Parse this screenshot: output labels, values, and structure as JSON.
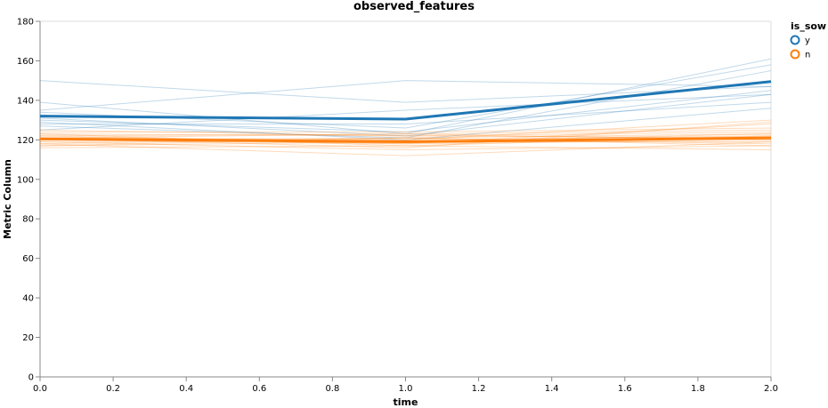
{
  "chart_data": {
    "type": "line",
    "title": "observed_features",
    "xlabel": "time",
    "ylabel": "Metric Column",
    "xlim": [
      0,
      2
    ],
    "ylim": [
      0,
      180
    ],
    "x_ticks": [
      "0.0",
      "0.2",
      "0.4",
      "0.6",
      "0.8",
      "1.0",
      "1.2",
      "1.4",
      "1.6",
      "1.8",
      "2.0"
    ],
    "y_ticks": [
      "0",
      "20",
      "40",
      "60",
      "80",
      "100",
      "120",
      "140",
      "160",
      "180"
    ],
    "grid": false,
    "legend": {
      "title": "is_sow",
      "placement": "top-right",
      "entries": [
        {
          "label": "y",
          "color": "#1f77b4"
        },
        {
          "label": "n",
          "color": "#ff7f0e"
        }
      ]
    },
    "x": [
      0,
      1,
      2
    ],
    "series": [
      {
        "name": "y",
        "role": "mean",
        "color": "#1f77b4",
        "values": [
          132,
          130.5,
          149.5
        ]
      },
      {
        "name": "n",
        "role": "mean",
        "color": "#ff7f0e",
        "values": [
          120.5,
          119,
          121
        ]
      },
      {
        "name": "y",
        "role": "individual",
        "color": "#1f77b4",
        "values": [
          150,
          139,
          147
        ]
      },
      {
        "name": "y",
        "role": "individual",
        "color": "#1f77b4",
        "values": [
          139,
          123,
          161
        ]
      },
      {
        "name": "y",
        "role": "individual",
        "color": "#1f77b4",
        "values": [
          135,
          150,
          147
        ]
      },
      {
        "name": "y",
        "role": "individual",
        "color": "#1f77b4",
        "values": [
          134,
          126,
          158
        ]
      },
      {
        "name": "y",
        "role": "individual",
        "color": "#1f77b4",
        "values": [
          131,
          122,
          143
        ]
      },
      {
        "name": "y",
        "role": "individual",
        "color": "#1f77b4",
        "values": [
          130,
          124,
          145
        ]
      },
      {
        "name": "y",
        "role": "individual",
        "color": "#1f77b4",
        "values": [
          128,
          128,
          139
        ]
      },
      {
        "name": "y",
        "role": "individual",
        "color": "#1f77b4",
        "values": [
          127,
          121,
          155
        ]
      },
      {
        "name": "y",
        "role": "individual",
        "color": "#1f77b4",
        "values": [
          129,
          120,
          136
        ]
      },
      {
        "name": "y",
        "role": "individual",
        "color": "#1f77b4",
        "values": [
          125,
          135,
          143
        ]
      },
      {
        "name": "n",
        "role": "individual",
        "color": "#ff7f0e",
        "values": [
          123,
          117,
          122
        ]
      },
      {
        "name": "n",
        "role": "individual",
        "color": "#ff7f0e",
        "values": [
          121,
          120,
          130
        ]
      },
      {
        "name": "n",
        "role": "individual",
        "color": "#ff7f0e",
        "values": [
          120,
          118,
          128
        ]
      },
      {
        "name": "n",
        "role": "individual",
        "color": "#ff7f0e",
        "values": [
          117,
          121,
          123
        ]
      },
      {
        "name": "n",
        "role": "individual",
        "color": "#ff7f0e",
        "values": [
          122,
          123,
          125
        ]
      },
      {
        "name": "n",
        "role": "individual",
        "color": "#ff7f0e",
        "values": [
          119,
          115,
          117
        ]
      },
      {
        "name": "n",
        "role": "individual",
        "color": "#ff7f0e",
        "values": [
          118,
          112,
          119
        ]
      },
      {
        "name": "n",
        "role": "individual",
        "color": "#ff7f0e",
        "values": [
          124,
          124,
          126
        ]
      },
      {
        "name": "n",
        "role": "individual",
        "color": "#ff7f0e",
        "values": [
          121,
          119,
          121
        ]
      },
      {
        "name": "n",
        "role": "individual",
        "color": "#ff7f0e",
        "values": [
          116,
          117,
          115
        ]
      },
      {
        "name": "n",
        "role": "individual",
        "color": "#ff7f0e",
        "values": [
          120,
          121,
          118
        ]
      },
      {
        "name": "n",
        "role": "individual",
        "color": "#ff7f0e",
        "values": [
          123,
          122,
          124
        ]
      },
      {
        "name": "n",
        "role": "individual",
        "color": "#ff7f0e",
        "values": [
          122,
          118,
          120
        ]
      },
      {
        "name": "n",
        "role": "individual",
        "color": "#ff7f0e",
        "values": [
          119,
          120,
          122
        ]
      },
      {
        "name": "n",
        "role": "individual",
        "color": "#ff7f0e",
        "values": [
          121,
          116,
          129
        ]
      },
      {
        "name": "n",
        "role": "individual",
        "color": "#ff7f0e",
        "values": [
          118,
          121,
          117
        ]
      },
      {
        "name": "n",
        "role": "individual",
        "color": "#ff7f0e",
        "values": [
          120,
          119,
          123
        ]
      },
      {
        "name": "n",
        "role": "individual",
        "color": "#ff7f0e",
        "values": [
          125,
          122,
          121
        ]
      },
      {
        "name": "n",
        "role": "individual",
        "color": "#ff7f0e",
        "values": [
          117,
          119,
          119
        ]
      },
      {
        "name": "n",
        "role": "individual",
        "color": "#ff7f0e",
        "values": [
          121,
          123,
          120
        ]
      }
    ]
  }
}
